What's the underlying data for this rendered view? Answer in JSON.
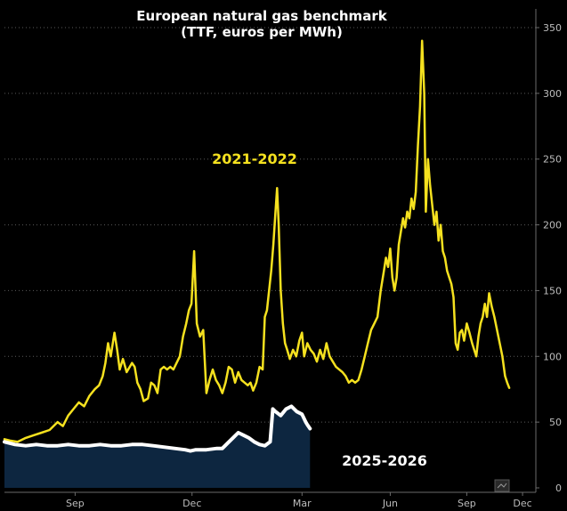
{
  "chart_data": {
    "type": "line",
    "title": "European natural gas benchmark",
    "subtitle": "(TTF, euros per MWh)",
    "ylim": [
      0,
      360
    ],
    "yticks": [
      0,
      50,
      100,
      150,
      200,
      250,
      300,
      350
    ],
    "xtick_labels": [
      {
        "label": "Sep",
        "t": 0.133
      },
      {
        "label": "Dec",
        "t": 0.353
      },
      {
        "label": "Mar",
        "t": 0.56
      },
      {
        "label": "Jun",
        "t": 0.726
      },
      {
        "label": "Sep",
        "t": 0.87
      },
      {
        "label": "Dec",
        "t": 0.975
      }
    ],
    "series": [
      {
        "name": "2021-2022",
        "label": "2021-2022",
        "color": "#f5e11f",
        "area": false,
        "points": [
          [
            0.0,
            37
          ],
          [
            0.01,
            36
          ],
          [
            0.025,
            35
          ],
          [
            0.04,
            38
          ],
          [
            0.055,
            40
          ],
          [
            0.07,
            42
          ],
          [
            0.085,
            44
          ],
          [
            0.1,
            50
          ],
          [
            0.11,
            47
          ],
          [
            0.12,
            55
          ],
          [
            0.13,
            60
          ],
          [
            0.14,
            65
          ],
          [
            0.15,
            62
          ],
          [
            0.16,
            70
          ],
          [
            0.17,
            75
          ],
          [
            0.178,
            78
          ],
          [
            0.185,
            85
          ],
          [
            0.19,
            95
          ],
          [
            0.195,
            110
          ],
          [
            0.2,
            100
          ],
          [
            0.207,
            118
          ],
          [
            0.212,
            105
          ],
          [
            0.217,
            90
          ],
          [
            0.223,
            98
          ],
          [
            0.23,
            88
          ],
          [
            0.24,
            95
          ],
          [
            0.245,
            92
          ],
          [
            0.25,
            80
          ],
          [
            0.256,
            75
          ],
          [
            0.262,
            66
          ],
          [
            0.27,
            68
          ],
          [
            0.276,
            80
          ],
          [
            0.282,
            78
          ],
          [
            0.288,
            72
          ],
          [
            0.294,
            90
          ],
          [
            0.3,
            92
          ],
          [
            0.306,
            90
          ],
          [
            0.312,
            92
          ],
          [
            0.318,
            90
          ],
          [
            0.324,
            95
          ],
          [
            0.33,
            100
          ],
          [
            0.336,
            115
          ],
          [
            0.342,
            125
          ],
          [
            0.347,
            135
          ],
          [
            0.352,
            140
          ],
          [
            0.357,
            180
          ],
          [
            0.362,
            125
          ],
          [
            0.368,
            115
          ],
          [
            0.374,
            120
          ],
          [
            0.38,
            72
          ],
          [
            0.386,
            82
          ],
          [
            0.392,
            90
          ],
          [
            0.398,
            82
          ],
          [
            0.404,
            78
          ],
          [
            0.41,
            72
          ],
          [
            0.416,
            80
          ],
          [
            0.422,
            92
          ],
          [
            0.428,
            90
          ],
          [
            0.434,
            80
          ],
          [
            0.44,
            88
          ],
          [
            0.446,
            82
          ],
          [
            0.452,
            80
          ],
          [
            0.458,
            78
          ],
          [
            0.463,
            80
          ],
          [
            0.468,
            74
          ],
          [
            0.474,
            80
          ],
          [
            0.48,
            92
          ],
          [
            0.486,
            90
          ],
          [
            0.49,
            130
          ],
          [
            0.494,
            135
          ],
          [
            0.498,
            150
          ],
          [
            0.502,
            165
          ],
          [
            0.506,
            185
          ],
          [
            0.51,
            210
          ],
          [
            0.513,
            228
          ],
          [
            0.516,
            200
          ],
          [
            0.52,
            150
          ],
          [
            0.524,
            125
          ],
          [
            0.528,
            110
          ],
          [
            0.532,
            105
          ],
          [
            0.537,
            98
          ],
          [
            0.543,
            105
          ],
          [
            0.549,
            100
          ],
          [
            0.555,
            112
          ],
          [
            0.56,
            118
          ],
          [
            0.564,
            100
          ],
          [
            0.57,
            110
          ],
          [
            0.576,
            105
          ],
          [
            0.582,
            102
          ],
          [
            0.588,
            96
          ],
          [
            0.594,
            105
          ],
          [
            0.6,
            98
          ],
          [
            0.606,
            110
          ],
          [
            0.612,
            100
          ],
          [
            0.618,
            96
          ],
          [
            0.624,
            92
          ],
          [
            0.63,
            90
          ],
          [
            0.636,
            88
          ],
          [
            0.642,
            85
          ],
          [
            0.648,
            80
          ],
          [
            0.654,
            82
          ],
          [
            0.66,
            80
          ],
          [
            0.666,
            82
          ],
          [
            0.672,
            90
          ],
          [
            0.678,
            100
          ],
          [
            0.684,
            110
          ],
          [
            0.69,
            120
          ],
          [
            0.696,
            125
          ],
          [
            0.702,
            130
          ],
          [
            0.708,
            150
          ],
          [
            0.714,
            165
          ],
          [
            0.718,
            175
          ],
          [
            0.722,
            168
          ],
          [
            0.726,
            182
          ],
          [
            0.73,
            160
          ],
          [
            0.734,
            150
          ],
          [
            0.738,
            160
          ],
          [
            0.742,
            185
          ],
          [
            0.746,
            195
          ],
          [
            0.75,
            205
          ],
          [
            0.754,
            198
          ],
          [
            0.758,
            210
          ],
          [
            0.762,
            205
          ],
          [
            0.766,
            220
          ],
          [
            0.77,
            212
          ],
          [
            0.774,
            225
          ],
          [
            0.778,
            260
          ],
          [
            0.782,
            290
          ],
          [
            0.786,
            340
          ],
          [
            0.79,
            300
          ],
          [
            0.793,
            210
          ],
          [
            0.797,
            250
          ],
          [
            0.801,
            230
          ],
          [
            0.805,
            215
          ],
          [
            0.809,
            200
          ],
          [
            0.813,
            210
          ],
          [
            0.817,
            188
          ],
          [
            0.821,
            200
          ],
          [
            0.825,
            180
          ],
          [
            0.829,
            175
          ],
          [
            0.833,
            165
          ],
          [
            0.837,
            160
          ],
          [
            0.841,
            155
          ],
          [
            0.845,
            145
          ],
          [
            0.849,
            110
          ],
          [
            0.853,
            105
          ],
          [
            0.857,
            118
          ],
          [
            0.861,
            120
          ],
          [
            0.865,
            112
          ],
          [
            0.87,
            125
          ],
          [
            0.875,
            118
          ],
          [
            0.88,
            110
          ],
          [
            0.884,
            105
          ],
          [
            0.888,
            100
          ],
          [
            0.892,
            115
          ],
          [
            0.896,
            125
          ],
          [
            0.9,
            130
          ],
          [
            0.904,
            140
          ],
          [
            0.908,
            130
          ],
          [
            0.912,
            148
          ],
          [
            0.917,
            138
          ],
          [
            0.922,
            130
          ],
          [
            0.927,
            120
          ],
          [
            0.932,
            110
          ],
          [
            0.937,
            100
          ],
          [
            0.942,
            85
          ],
          [
            0.946,
            80
          ],
          [
            0.95,
            76
          ]
        ]
      },
      {
        "name": "2025-2026",
        "label": "2025-2026",
        "color": "#ffffff",
        "area": true,
        "area_color": "#0d2640",
        "points": [
          [
            0.0,
            35
          ],
          [
            0.02,
            33
          ],
          [
            0.04,
            32
          ],
          [
            0.06,
            33
          ],
          [
            0.08,
            32
          ],
          [
            0.1,
            32
          ],
          [
            0.12,
            33
          ],
          [
            0.14,
            32
          ],
          [
            0.16,
            32
          ],
          [
            0.18,
            33
          ],
          [
            0.2,
            32
          ],
          [
            0.22,
            32
          ],
          [
            0.24,
            33
          ],
          [
            0.26,
            33
          ],
          [
            0.28,
            32
          ],
          [
            0.3,
            31
          ],
          [
            0.32,
            30
          ],
          [
            0.34,
            29
          ],
          [
            0.35,
            28
          ],
          [
            0.36,
            29
          ],
          [
            0.38,
            29
          ],
          [
            0.4,
            30
          ],
          [
            0.41,
            30
          ],
          [
            0.42,
            34
          ],
          [
            0.43,
            38
          ],
          [
            0.44,
            42
          ],
          [
            0.45,
            40
          ],
          [
            0.46,
            38
          ],
          [
            0.47,
            35
          ],
          [
            0.48,
            33
          ],
          [
            0.49,
            32
          ],
          [
            0.5,
            35
          ],
          [
            0.505,
            60
          ],
          [
            0.51,
            58
          ],
          [
            0.52,
            55
          ],
          [
            0.53,
            60
          ],
          [
            0.54,
            62
          ],
          [
            0.55,
            58
          ],
          [
            0.56,
            56
          ],
          [
            0.567,
            50
          ],
          [
            0.57,
            48
          ],
          [
            0.575,
            45
          ]
        ]
      }
    ]
  }
}
